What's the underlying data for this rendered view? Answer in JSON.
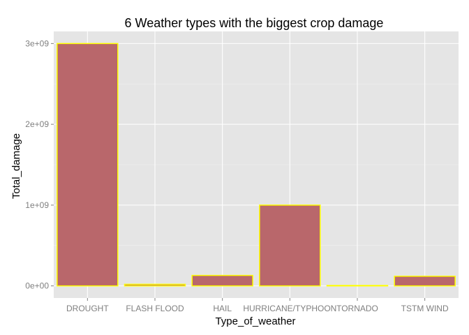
{
  "chart_data": {
    "type": "bar",
    "title": "6 Weather types with the biggest crop damage",
    "xlabel": "Type_of_weather",
    "ylabel": "Total_damage",
    "categories": [
      "DROUGHT",
      "FLASH FLOOD",
      "HAIL",
      "HURRICANE/TYPHOON",
      "TORNADO",
      "TSTM WIND"
    ],
    "values": [
      3000000000,
      20000000,
      130000000,
      1000000000,
      5000000,
      120000000
    ],
    "ylim": [
      -150000000,
      3150000000
    ],
    "yticks": [
      0,
      1000000000,
      2000000000,
      3000000000
    ],
    "ytick_labels": [
      "0e+00",
      "1e+09",
      "2e+09",
      "3e+09"
    ],
    "grid": true,
    "legend": "none",
    "colors": {
      "panel_background": "#E5E5E5",
      "grid_major": "#FFFFFF",
      "grid_minor": "#F2F2F2",
      "bar_fill": "#B9676B",
      "bar_outline": "#FFFF00",
      "tick_label": "#7F7F7F",
      "tick_mark": "#7F7F7F"
    }
  }
}
